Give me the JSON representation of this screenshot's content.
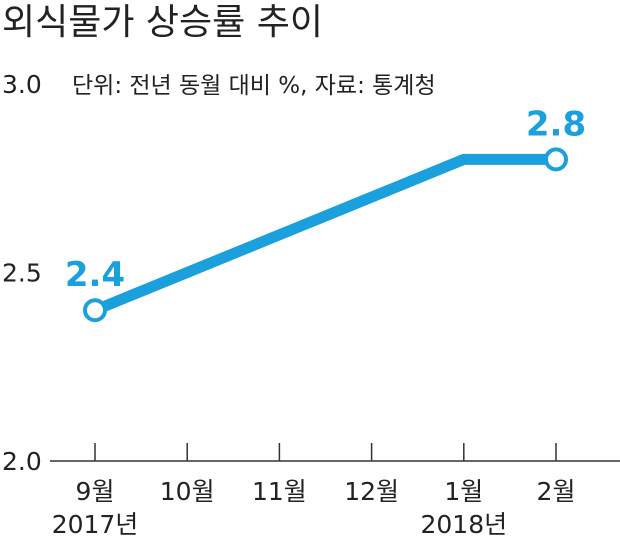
{
  "chart_data": {
    "type": "line",
    "title": "외식물가 상승률 추이",
    "subtitle": "단위: 전년 동월 대비 %, 자료: 통계청",
    "categories": [
      "9월",
      "10월",
      "11월",
      "12월",
      "1월",
      "2월"
    ],
    "year_labels": [
      {
        "category_index": 0,
        "label": "2017년"
      },
      {
        "category_index": 4,
        "label": "2018년"
      }
    ],
    "series": [
      {
        "values": [
          2.4,
          2.5,
          2.6,
          2.7,
          2.8,
          2.8
        ]
      }
    ],
    "y_ticks": [
      "2.0",
      "2.5",
      "3.0"
    ],
    "ylim": [
      2.0,
      3.0
    ],
    "data_labels": [
      {
        "category_index": 0,
        "text": "2.4"
      },
      {
        "category_index": 5,
        "text": "2.8"
      }
    ],
    "grid": false,
    "line_color": "#1aa0dc",
    "marker_fill": "#ffffff",
    "axis_color": "#333333",
    "text_color": "#222222"
  }
}
